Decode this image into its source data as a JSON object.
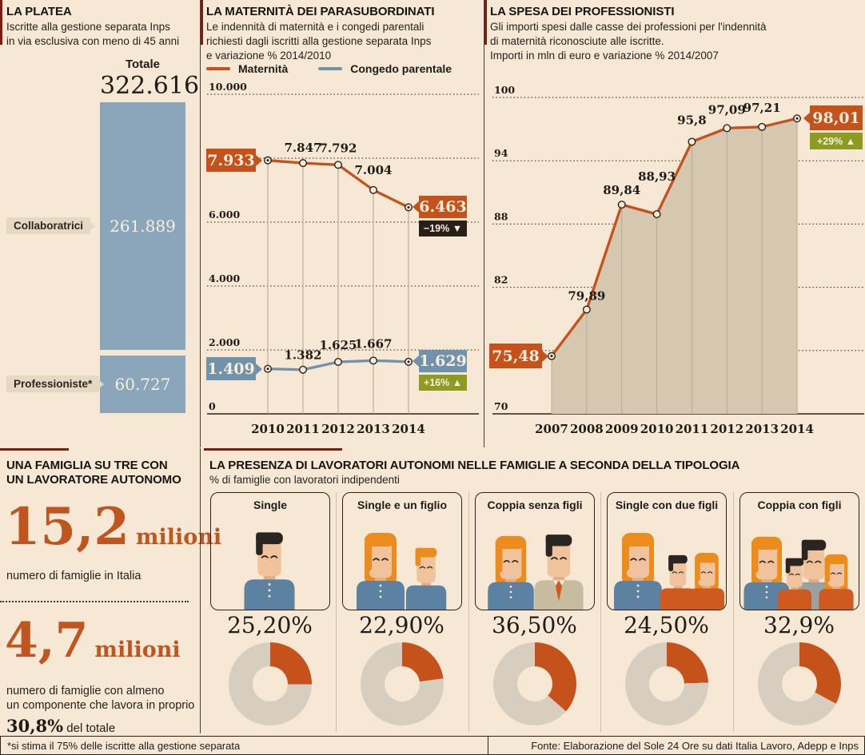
{
  "colors": {
    "background": "#f6e8d4",
    "accent_orange": "#c5511b",
    "steel_blue": "#7192ab",
    "bar_blue": "#8ba6ba",
    "badge_dark": "#262019",
    "badge_olive": "#8d9c21",
    "area_fill": "#d5c7b0",
    "donut_rest": "#d8cec0",
    "red_tick": "#7e1c10"
  },
  "platea": {
    "title": "LA PLATEA",
    "subtitle_lines": [
      "Iscritte alla gestione separata Inps",
      "in via esclusiva con meno di 45 anni"
    ],
    "total_label": "Totale",
    "total_value": "322.616",
    "rows": [
      {
        "label": "Collaboratrici",
        "value_label": "261.889"
      },
      {
        "label": "Professioniste*",
        "value_label": "60.727"
      }
    ]
  },
  "maternita": {
    "title": "LA MATERNITÀ DEI PARASUBORDINATI",
    "subtitle_lines": [
      "Le indennità di maternità e i congedi parentali",
      "richiesti dagli iscritti alla gestione separata Inps",
      "e variazione % 2014/2010"
    ],
    "legend": [
      {
        "label": "Maternità"
      },
      {
        "label": "Congedo parentale"
      }
    ],
    "mat_first_box": "7.933",
    "mat_last_box": "6.463",
    "mat_badge": "−19% ▼",
    "con_first_box": "1.409",
    "con_last_box": "1.629",
    "con_badge": "+16% ▲"
  },
  "spesa": {
    "title": "LA SPESA DEI PROFESSIONISTI",
    "subtitle_lines": [
      "Gli importi spesi dalle casse dei professioni per l'indennità",
      "di maternità riconosciute alle iscritte.",
      "Importi in mln di euro e variazione % 2014/2007"
    ],
    "first_box": "75,48",
    "last_box": "98,01",
    "badge": "+29% ▲"
  },
  "famiglia": {
    "title_lines": [
      "UNA FAMIGLIA SU TRE CON",
      "UN LAVORATORE AUTONOMO"
    ],
    "stat1": {
      "number": "15,2",
      "unit": "milioni",
      "caption": "numero di famiglie in Italia"
    },
    "stat2": {
      "number": "4,7",
      "unit": "milioni",
      "caption_lines": [
        "numero di famiglie con almeno",
        "un componente che lavora in proprio"
      ]
    },
    "share": "30,8%",
    "share_suffix": " del totale"
  },
  "tipologia": {
    "title": "LA PRESENZA DI LAVORATORI AUTONOMI NELLE FAMIGLIE A SECONDA DELLA TIPOLOGIA",
    "subtitle": "% di famiglie con lavoratori indipendenti",
    "panels": [
      {
        "label": "Single",
        "pct_label": "25,20%",
        "pct": 25.2
      },
      {
        "label": "Single e un figlio",
        "pct_label": "22,90%",
        "pct": 22.9
      },
      {
        "label": "Coppia senza figli",
        "pct_label": "36,50%",
        "pct": 36.5
      },
      {
        "label": "Single con due figli",
        "pct_label": "24,50%",
        "pct": 24.5
      },
      {
        "label": "Coppia con figli",
        "pct_label": "32,9%",
        "pct": 32.9
      }
    ]
  },
  "footer": {
    "note": "*si stima il 75% delle iscritte alla gestione separata",
    "source": "Fonte: Elaborazione del Sole 24 Ore su dati Italia Lavoro, Adepp e Inps"
  },
  "chart_data": [
    {
      "id": "platea",
      "type": "bar",
      "title": "LA PLATEA",
      "categories": [
        "Collaboratrici",
        "Professioniste*"
      ],
      "values": [
        261889,
        60727
      ],
      "value_labels": [
        "261.889",
        "60.727"
      ],
      "total": 322616,
      "total_display": "322.616",
      "orientation": "vertical-stacked"
    },
    {
      "id": "maternita",
      "type": "line",
      "title": "LA MATERNITÀ DEI PARASUBORDINATI",
      "categories": [
        "2010",
        "2011",
        "2012",
        "2013",
        "2014"
      ],
      "ylim": [
        0,
        10000
      ],
      "yticks": [
        {
          "v": 10000,
          "label": "10.000"
        },
        {
          "v": 8000,
          "label": ""
        },
        {
          "v": 6000,
          "label": "6.000"
        },
        {
          "v": 4000,
          "label": "4.000"
        },
        {
          "v": 2000,
          "label": "2.000"
        },
        {
          "v": 0,
          "label": "0"
        }
      ],
      "series": [
        {
          "name": "Maternità",
          "color": "#c5511b",
          "values": [
            7933,
            7847,
            7792,
            7004,
            6463
          ],
          "point_labels": [
            "",
            "7.847",
            "7.792",
            "7.004",
            ""
          ],
          "label_dy": [
            0,
            -14,
            -16,
            -20,
            0
          ],
          "change_pct": "−19%"
        },
        {
          "name": "Congedo parentale",
          "color": "#7192ab",
          "values": [
            1409,
            1382,
            1625,
            1667,
            1629
          ],
          "point_labels": [
            "",
            "1.382",
            "1.625",
            "1.667",
            ""
          ],
          "label_dy": [
            0,
            -13,
            -16,
            -16,
            0
          ],
          "change_pct": "+16%"
        }
      ],
      "grid": "dotted-horizontal",
      "legend_position": "top"
    },
    {
      "id": "spesa",
      "type": "area",
      "title": "LA SPESA DEI PROFESSIONISTI",
      "categories": [
        "2007",
        "2008",
        "2009",
        "2010",
        "2011",
        "2012",
        "2013",
        "2014"
      ],
      "ylim": [
        70,
        100
      ],
      "yticks": [
        {
          "v": 100,
          "label": "100"
        },
        {
          "v": 94,
          "label": "94"
        },
        {
          "v": 88,
          "label": "88"
        },
        {
          "v": 82,
          "label": "82"
        },
        {
          "v": 76,
          "label": ""
        },
        {
          "v": 70,
          "label": "70"
        }
      ],
      "color": "#c5511b",
      "values": [
        75.48,
        79.89,
        89.84,
        88.93,
        95.8,
        97.09,
        97.21,
        98.01
      ],
      "point_labels": [
        "",
        "79,89",
        "89,84",
        "88,93",
        "95,8",
        "97,09",
        "97,21",
        ""
      ],
      "label_dy": [
        0,
        -12,
        -13,
        -42,
        -22,
        -18,
        -19,
        0
      ],
      "change_pct": "+29%",
      "grid": "dotted-horizontal"
    },
    {
      "id": "famiglie_donuts",
      "type": "pie",
      "categories": [
        "Single",
        "Single e un figlio",
        "Coppia senza figli",
        "Single con due figli",
        "Coppia con figli"
      ],
      "values": [
        25.2,
        22.9,
        36.5,
        24.5,
        32.9
      ],
      "value_labels": [
        "25,20%",
        "22,90%",
        "36,50%",
        "24,50%",
        "32,9%"
      ],
      "ylabel": "% di famiglie con lavoratori indipendenti"
    }
  ]
}
